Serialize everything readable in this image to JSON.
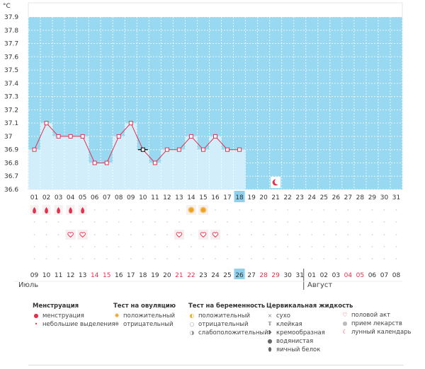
{
  "chart_data": {
    "type": "bar",
    "unit": "°C",
    "ylim": [
      36.6,
      37.9
    ],
    "yticks": [
      "37.9",
      "37.8",
      "37.7",
      "37.6",
      "37.5",
      "37.4",
      "37.3",
      "37.2",
      "37.1",
      "37",
      "36.9",
      "36.8",
      "36.7",
      "36.6"
    ],
    "cycle_days": [
      "01",
      "02",
      "03",
      "04",
      "05",
      "06",
      "07",
      "08",
      "09",
      "10",
      "11",
      "12",
      "13",
      "14",
      "15",
      "16",
      "17",
      "18",
      "19",
      "20",
      "21",
      "22",
      "23",
      "24",
      "25",
      "26",
      "27",
      "28",
      "29",
      "30",
      "31"
    ],
    "calendar_days": [
      "09",
      "10",
      "11",
      "12",
      "13",
      "14",
      "15",
      "16",
      "17",
      "18",
      "19",
      "20",
      "21",
      "22",
      "23",
      "24",
      "25",
      "26",
      "27",
      "28",
      "29",
      "30",
      "31",
      "01",
      "02",
      "03",
      "04",
      "05",
      "06",
      "07",
      "08"
    ],
    "calendar_red": [
      5,
      6,
      12,
      13,
      19,
      20,
      26,
      27
    ],
    "current_day_index": 17,
    "temperatures": [
      36.9,
      37.1,
      37.0,
      37.0,
      37.0,
      36.8,
      36.8,
      37.0,
      37.1,
      36.9,
      36.8,
      36.9,
      36.9,
      37.0,
      36.9,
      37.0,
      36.9,
      36.9
    ],
    "menstruation_days": [
      0,
      1,
      2,
      3,
      4
    ],
    "ovulation_positive_days": [
      13,
      14
    ],
    "sex_days": [
      3,
      4,
      12,
      14,
      15
    ],
    "moon_day": 20,
    "months": [
      "Июль",
      "Август"
    ]
  },
  "colors": {
    "bg_fill": "#98d8f0",
    "bar_fill": "#d2eefb",
    "line": "#e5304c",
    "highlight": "#8fd0ec",
    "accent": "#e5304c"
  },
  "legend": {
    "menstruation": {
      "title": "Менструация",
      "items": [
        "менструация",
        "небольшие выделения"
      ]
    },
    "ovulation": {
      "title": "Тест на овуляцию",
      "items": [
        "положительный",
        "отрицательный"
      ]
    },
    "pregnancy": {
      "title": "Тест на беременность",
      "items": [
        "положительный",
        "отрицательный",
        "слабоположительный"
      ]
    },
    "cervical": {
      "title": "Цервикальная жидкость",
      "items": [
        "сухо",
        "клейкая",
        "кремообразная",
        "водянистая",
        "яичный белок"
      ]
    },
    "other": {
      "items": [
        "половой акт",
        "прием лекарств",
        "лунный календарь"
      ]
    }
  }
}
